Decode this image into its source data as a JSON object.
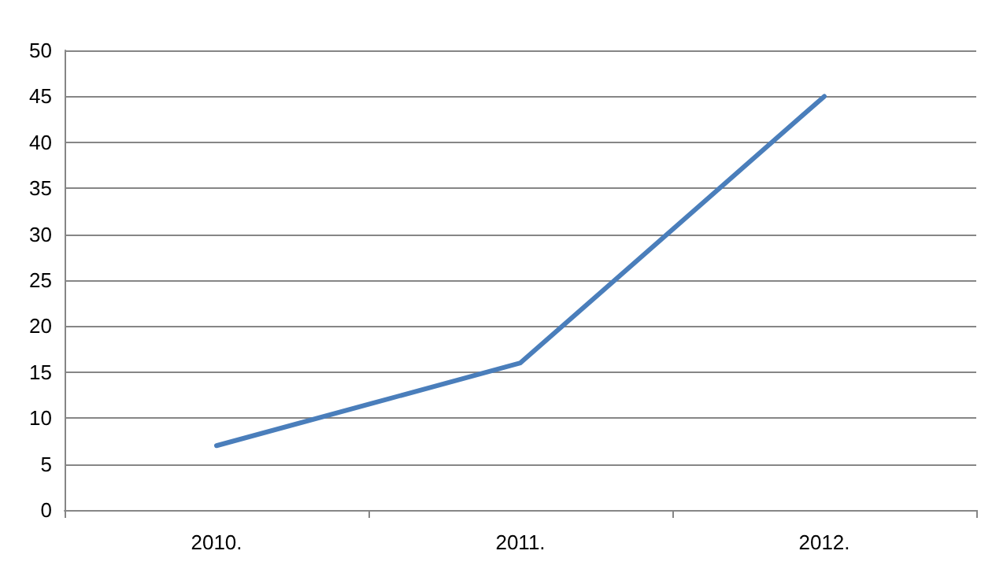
{
  "chart_data": {
    "type": "line",
    "categories": [
      "2010.",
      "2011.",
      "2012."
    ],
    "series": [
      {
        "color": "#4a7ebb",
        "values": [
          7,
          16,
          45
        ]
      }
    ],
    "ylim": [
      0,
      50
    ],
    "yticks": [
      0,
      5,
      10,
      15,
      20,
      25,
      30,
      35,
      40,
      45,
      50
    ],
    "grid": "y",
    "marker": "none",
    "line_style": "solid"
  }
}
